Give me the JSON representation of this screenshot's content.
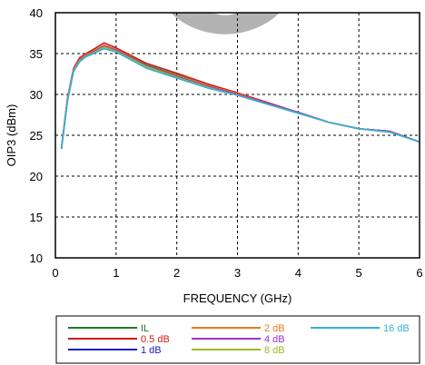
{
  "chart_data": {
    "type": "line",
    "xlabel": "FREQUENCY (GHz)",
    "ylabel": "OIP3 (dBm)",
    "xlim": [
      0,
      6
    ],
    "ylim": [
      10,
      40
    ],
    "x_ticks": [
      "0",
      "1",
      "2",
      "3",
      "4",
      "5",
      "6"
    ],
    "y_ticks": [
      "10",
      "15",
      "20",
      "25",
      "30",
      "35",
      "40"
    ],
    "grid": true,
    "watermark_color": "#aaaaaa",
    "series": [
      {
        "name": "IL",
        "color": "#1e7d1e",
        "x": [
          0.1,
          0.2,
          0.3,
          0.4,
          0.5,
          0.6,
          0.8,
          1.0,
          1.5,
          2.0,
          2.5,
          3.0,
          3.5,
          4.0,
          4.5,
          5.0,
          5.5,
          6.0
        ],
        "y": [
          23.5,
          29.5,
          33.0,
          34.3,
          34.8,
          35.2,
          36.0,
          35.5,
          33.6,
          32.4,
          31.1,
          30.1,
          28.9,
          27.8,
          26.6,
          25.8,
          25.5,
          24.2
        ]
      },
      {
        "name": "0.5 dB",
        "color": "#d01818",
        "x": [
          0.1,
          0.2,
          0.3,
          0.4,
          0.5,
          0.6,
          0.8,
          1.0,
          1.5,
          2.0,
          2.5,
          3.0,
          3.5,
          4.0,
          4.5,
          5.0,
          5.5,
          6.0
        ],
        "y": [
          23.5,
          29.6,
          33.2,
          34.5,
          35.0,
          35.4,
          36.3,
          35.7,
          33.8,
          32.6,
          31.3,
          30.2,
          29.0,
          27.8,
          26.6,
          25.8,
          25.5,
          24.2
        ]
      },
      {
        "name": "1 dB",
        "color": "#1a1acc",
        "x": [
          0.1,
          0.2,
          0.3,
          0.4,
          0.5,
          0.6,
          0.8,
          1.0,
          1.5,
          2.0,
          2.5,
          3.0,
          3.5,
          4.0,
          4.5,
          5.0,
          5.5,
          6.0
        ],
        "y": [
          23.4,
          29.4,
          33.0,
          34.2,
          34.7,
          35.1,
          35.9,
          35.4,
          33.4,
          32.2,
          31.0,
          30.0,
          28.9,
          27.8,
          26.6,
          25.8,
          25.5,
          24.2
        ]
      },
      {
        "name": "2 dB",
        "color": "#f07820",
        "x": [
          0.1,
          0.2,
          0.3,
          0.4,
          0.5,
          0.6,
          0.8,
          1.0,
          1.5,
          2.0,
          2.5,
          3.0,
          3.5,
          4.0,
          4.5,
          5.0,
          5.5,
          6.0
        ],
        "y": [
          23.5,
          29.5,
          33.1,
          34.3,
          34.9,
          35.2,
          36.0,
          35.5,
          33.5,
          32.3,
          31.1,
          30.1,
          28.9,
          27.8,
          26.6,
          25.8,
          25.5,
          24.2
        ]
      },
      {
        "name": "4 dB",
        "color": "#9933cc",
        "x": [
          0.1,
          0.2,
          0.3,
          0.4,
          0.5,
          0.6,
          0.8,
          1.0,
          1.5,
          2.0,
          2.5,
          3.0,
          3.5,
          4.0,
          4.5,
          5.0,
          5.5,
          6.0
        ],
        "y": [
          23.4,
          29.4,
          33.0,
          34.2,
          34.8,
          35.1,
          35.9,
          35.4,
          33.5,
          32.2,
          31.0,
          30.0,
          28.9,
          27.8,
          26.6,
          25.8,
          25.5,
          24.2
        ]
      },
      {
        "name": "8 dB",
        "color": "#99bb22",
        "x": [
          0.1,
          0.2,
          0.3,
          0.4,
          0.5,
          0.6,
          0.8,
          1.0,
          1.5,
          2.0,
          2.5,
          3.0,
          3.5,
          4.0,
          4.5,
          5.0,
          5.5,
          6.0
        ],
        "y": [
          23.4,
          29.3,
          32.9,
          34.1,
          34.7,
          35.0,
          35.8,
          35.3,
          33.4,
          32.1,
          30.9,
          29.9,
          28.8,
          27.7,
          26.6,
          25.8,
          25.4,
          24.2
        ]
      },
      {
        "name": "16 dB",
        "color": "#33b0dd",
        "x": [
          0.1,
          0.2,
          0.3,
          0.4,
          0.5,
          0.6,
          0.8,
          1.0,
          1.5,
          2.0,
          2.5,
          3.0,
          3.5,
          4.0,
          4.5,
          5.0,
          5.5,
          6.0
        ],
        "y": [
          23.3,
          29.2,
          32.8,
          34.0,
          34.6,
          34.9,
          35.6,
          35.2,
          33.2,
          32.0,
          30.8,
          29.9,
          28.8,
          27.7,
          26.6,
          25.8,
          25.4,
          24.2
        ]
      }
    ]
  }
}
